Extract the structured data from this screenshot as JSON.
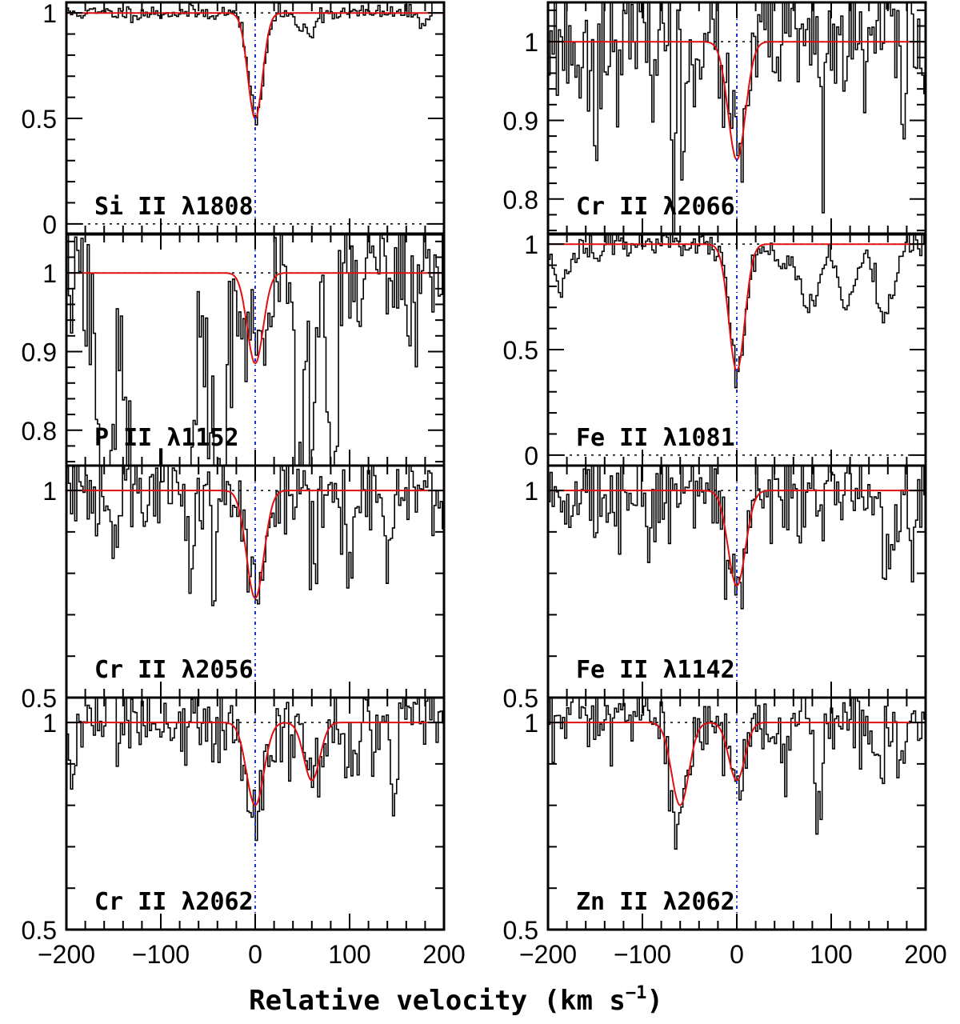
{
  "chart_data": {
    "type": "line",
    "layout": "4x2 stacked panels",
    "xlabel": "Relative velocity (km s",
    "xlabel_sup": "−1",
    "xlabel_close": ")",
    "xlim": [
      -200,
      200
    ],
    "xticks": [
      -200,
      -100,
      0,
      100,
      200
    ],
    "xtick_labels": [
      "−200",
      "−100",
      "0",
      "100",
      "200"
    ],
    "reference_velocity": 0,
    "panels": [
      {
        "id": "si2-1808",
        "col": 0,
        "row": 0,
        "label": "Si II λ1808",
        "ylim": [
          -0.05,
          1.05
        ],
        "yticks": [
          0,
          0.5,
          1
        ],
        "ytick_labels": [
          "0",
          "0.5",
          "1"
        ],
        "show_zero_line": true,
        "noise": 0.018,
        "seed": 11,
        "fit_components": [
          {
            "v": 0,
            "depth": 0.5,
            "b": 11
          }
        ],
        "spec_extra": [
          {
            "v": 45,
            "depth": 0.08,
            "b": 6
          },
          {
            "v": 58,
            "depth": 0.1,
            "b": 6
          },
          {
            "v": 175,
            "depth": 0.05,
            "b": 5
          }
        ],
        "spec_edge_high": true
      },
      {
        "id": "cr2-2066",
        "col": 1,
        "row": 0,
        "label": "Cr II λ2066",
        "ylim": [
          0.755,
          1.05
        ],
        "yticks": [
          0.8,
          0.9,
          1
        ],
        "ytick_labels": [
          "0.8",
          "0.9",
          "1"
        ],
        "show_zero_line": false,
        "noise": 0.04,
        "seed": 23,
        "fit_components": [
          {
            "v": 0,
            "depth": 0.15,
            "b": 13
          }
        ],
        "spec_extra": [
          {
            "v": -68,
            "depth": 0.25,
            "b": 2
          },
          {
            "v": -58,
            "depth": 0.22,
            "b": 2
          },
          {
            "v": 90,
            "depth": 0.3,
            "b": 1.5
          },
          {
            "v": 135,
            "depth": 0.1,
            "b": 2
          },
          {
            "v": 176,
            "depth": 0.12,
            "b": 2
          },
          {
            "v": -165,
            "depth": 0.08,
            "b": 3
          },
          {
            "v": -150,
            "depth": 0.12,
            "b": 2
          }
        ]
      },
      {
        "id": "p2-1152",
        "col": 0,
        "row": 1,
        "label": "P II λ1152",
        "ylim": [
          0.755,
          1.05
        ],
        "yticks": [
          0.8,
          0.9,
          1
        ],
        "ytick_labels": [
          "0.8",
          "0.9",
          "1"
        ],
        "show_zero_line": false,
        "noise": 0.05,
        "seed": 37,
        "fit_components": [
          {
            "v": 0,
            "depth": 0.115,
            "b": 12
          }
        ],
        "spec_extra": [
          {
            "v": -160,
            "depth": 0.35,
            "b": 12
          },
          {
            "v": -120,
            "depth": 0.45,
            "b": 15
          },
          {
            "v": -85,
            "depth": 0.5,
            "b": 20
          },
          {
            "v": -40,
            "depth": 0.35,
            "b": 10
          },
          {
            "v": 45,
            "depth": 0.3,
            "b": 5
          },
          {
            "v": 60,
            "depth": 0.25,
            "b": 4
          },
          {
            "v": 80,
            "depth": 0.3,
            "b": 6
          }
        ]
      },
      {
        "id": "fe2-1081",
        "col": 1,
        "row": 1,
        "label": "Fe II λ1081",
        "ylim": [
          -0.05,
          1.05
        ],
        "yticks": [
          0,
          0.5,
          1
        ],
        "ytick_labels": [
          "0",
          "0.5",
          "1"
        ],
        "show_zero_line": true,
        "noise": 0.035,
        "seed": 49,
        "fit_components": [
          {
            "v": 0,
            "depth": 0.6,
            "b": 12
          }
        ],
        "spec_extra": [
          {
            "v": -185,
            "depth": 0.22,
            "b": 10
          },
          {
            "v": -150,
            "depth": 0.08,
            "b": 8
          },
          {
            "v": 75,
            "depth": 0.3,
            "b": 14
          },
          {
            "v": 115,
            "depth": 0.3,
            "b": 12
          },
          {
            "v": 155,
            "depth": 0.35,
            "b": 14
          },
          {
            "v": 45,
            "depth": 0.12,
            "b": 8
          }
        ]
      },
      {
        "id": "cr2-2056",
        "col": 0,
        "row": 2,
        "label": "Cr II λ2056",
        "ylim": [
          0.5,
          1.06
        ],
        "yticks": [
          0.5,
          1
        ],
        "ytick_labels": [
          "0.5",
          "1"
        ],
        "show_zero_line": false,
        "noise": 0.06,
        "seed": 61,
        "fit_components": [
          {
            "v": 0,
            "depth": 0.26,
            "b": 13
          }
        ],
        "spec_extra": [
          {
            "v": -70,
            "depth": 0.18,
            "b": 4
          },
          {
            "v": -45,
            "depth": 0.28,
            "b": 4
          },
          {
            "v": -150,
            "depth": 0.14,
            "b": 6
          },
          {
            "v": 100,
            "depth": 0.16,
            "b": 6
          },
          {
            "v": 140,
            "depth": 0.12,
            "b": 6
          },
          {
            "v": 58,
            "depth": 0.5,
            "b": 1
          },
          {
            "v": 63,
            "depth": 0.5,
            "b": 1
          }
        ]
      },
      {
        "id": "fe2-1142",
        "col": 1,
        "row": 2,
        "label": "Fe II λ1142",
        "ylim": [
          0.5,
          1.06
        ],
        "yticks": [
          0.5,
          1
        ],
        "ytick_labels": [
          "0.5",
          "1"
        ],
        "show_zero_line": false,
        "noise": 0.06,
        "seed": 73,
        "fit_components": [
          {
            "v": 0,
            "depth": 0.23,
            "b": 13
          }
        ],
        "spec_extra": [
          {
            "v": -95,
            "depth": 0.1,
            "b": 5
          },
          {
            "v": 85,
            "depth": 0.1,
            "b": 5
          },
          {
            "v": 160,
            "depth": 0.22,
            "b": 8
          },
          {
            "v": 185,
            "depth": 0.12,
            "b": 5
          }
        ]
      },
      {
        "id": "cr2-2062",
        "col": 0,
        "row": 3,
        "label": "Cr II λ2062",
        "ylim": [
          0.5,
          1.06
        ],
        "yticks": [
          0.5,
          1
        ],
        "ytick_labels": [
          "0.5",
          "1"
        ],
        "show_zero_line": false,
        "noise": 0.05,
        "seed": 83,
        "fit_components": [
          {
            "v": 0,
            "depth": 0.2,
            "b": 13
          },
          {
            "v": 60,
            "depth": 0.14,
            "b": 12
          }
        ],
        "spec_extra": [
          {
            "v": -195,
            "depth": 0.12,
            "b": 4
          },
          {
            "v": -10,
            "depth": 0.08,
            "b": 6
          },
          {
            "v": 100,
            "depth": 0.1,
            "b": 10
          },
          {
            "v": 145,
            "depth": 0.22,
            "b": 5
          }
        ]
      },
      {
        "id": "zn2-2062",
        "col": 1,
        "row": 3,
        "label": "Zn II λ2062",
        "ylim": [
          0.5,
          1.06
        ],
        "yticks": [
          0.5,
          1
        ],
        "ytick_labels": [
          "0.5",
          "1"
        ],
        "show_zero_line": false,
        "noise": 0.05,
        "seed": 97,
        "fit_components": [
          {
            "v": -60,
            "depth": 0.2,
            "b": 13
          },
          {
            "v": 0,
            "depth": 0.14,
            "b": 12
          }
        ],
        "spec_extra": [
          {
            "v": -70,
            "depth": 0.08,
            "b": 6
          },
          {
            "v": 40,
            "depth": 0.1,
            "b": 10
          },
          {
            "v": 85,
            "depth": 0.22,
            "b": 5
          },
          {
            "v": 150,
            "depth": 0.1,
            "b": 6
          },
          {
            "v": 175,
            "depth": 0.1,
            "b": 5
          }
        ]
      }
    ]
  }
}
